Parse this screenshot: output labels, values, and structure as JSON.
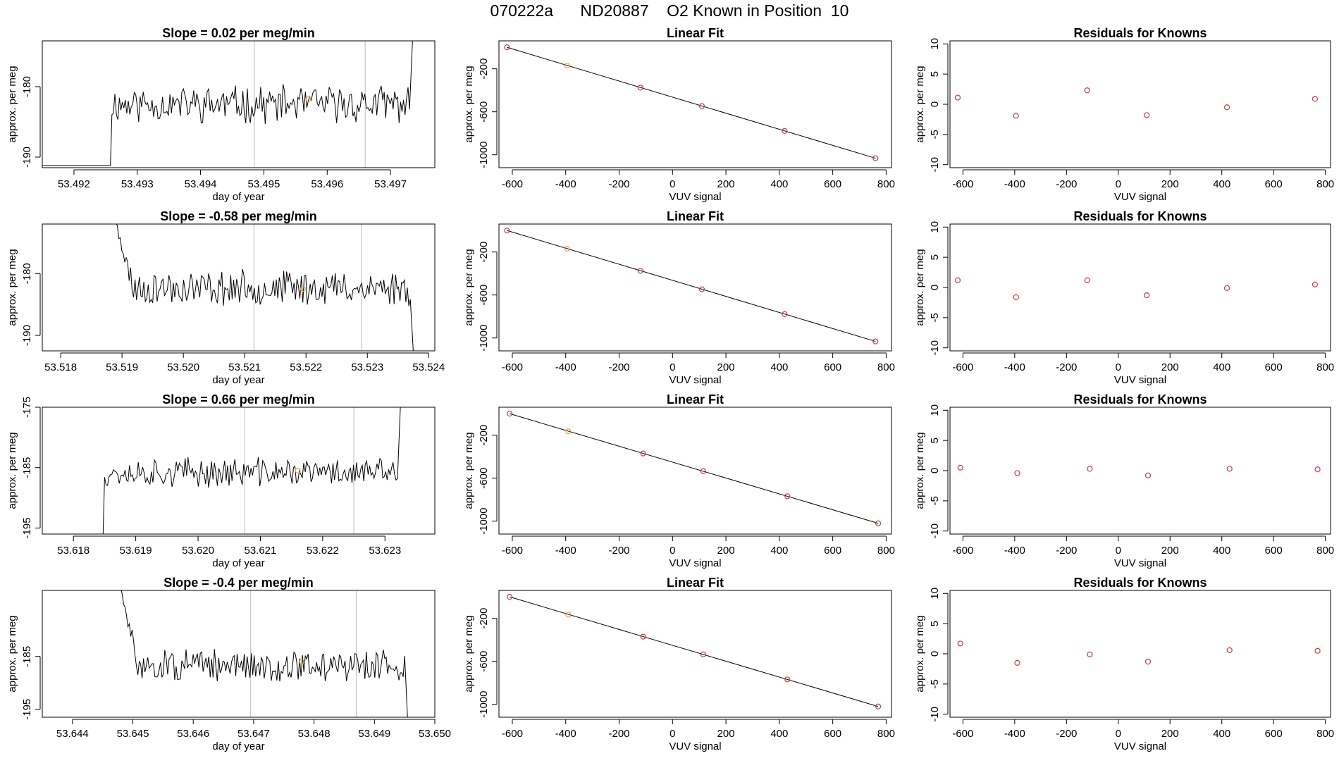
{
  "page": {
    "title": "070222a      ND20887    O2 Known in Position  10"
  },
  "colors": {
    "line": "#000000",
    "box": "#000000",
    "vline": "#bebebe",
    "point": "#cd3b3b",
    "highlight": "#e8a33c"
  },
  "chart_data": [
    {
      "type": "line",
      "row": 0,
      "col": 0,
      "title": "Slope =  0.02  per meg/min",
      "xlabel": "day of year",
      "ylabel": "approx. per meg",
      "xlim": [
        53.4915,
        53.4977
      ],
      "ylim": [
        -191.5,
        -173.5
      ],
      "xticks": [
        53.492,
        53.493,
        53.494,
        53.495,
        53.496,
        53.497
      ],
      "xtick_labels": [
        "53.492",
        "53.493",
        "53.494",
        "53.495",
        "53.496",
        "53.497"
      ],
      "yticks": [
        -180,
        -190
      ],
      "ytick_labels": [
        "-180",
        "-190"
      ],
      "vlines": [
        53.49485,
        53.4966
      ],
      "highlight": {
        "x": 53.4957,
        "y": -181.8
      },
      "trace": {
        "x_start": 53.4926,
        "x_end": 53.4973,
        "baseline": -182.5,
        "pre_value": -191.2,
        "end_value": -173.5,
        "amplitude": 2.2,
        "seed": 11,
        "n": 200
      }
    },
    {
      "type": "scatter",
      "row": 0,
      "col": 1,
      "title": "Linear Fit",
      "xlabel": "VUV signal",
      "ylabel": "approx. per meg",
      "xlim": [
        -650,
        820
      ],
      "ylim": [
        -1120,
        60
      ],
      "xticks": [
        -600,
        -400,
        -200,
        0,
        200,
        400,
        600,
        800
      ],
      "xtick_labels": [
        "-600",
        "-400",
        "-200",
        "0",
        "200",
        "400",
        "600",
        "800"
      ],
      "yticks": [
        -200,
        -600,
        -1000
      ],
      "ytick_labels": [
        "-200",
        "-600",
        "-1000"
      ],
      "points": [
        [
          -620,
          0
        ],
        [
          -395,
          -170
        ],
        [
          -120,
          -375
        ],
        [
          110,
          -547
        ],
        [
          420,
          -778
        ],
        [
          760,
          -1032
        ]
      ],
      "highlight_index": 1,
      "fit_line": [
        [
          -620,
          0
        ],
        [
          760,
          -1032
        ]
      ]
    },
    {
      "type": "scatter",
      "row": 0,
      "col": 2,
      "title": "Residuals for Knowns",
      "xlabel": "VUV signal",
      "ylabel": "approx. per meg",
      "xlim": [
        -650,
        820
      ],
      "ylim": [
        -10.5,
        10.5
      ],
      "xticks": [
        -600,
        -400,
        -200,
        0,
        200,
        400,
        600,
        800
      ],
      "xtick_labels": [
        "-600",
        "-400",
        "-200",
        "0",
        "200",
        "400",
        "600",
        "800"
      ],
      "yticks": [
        10,
        5,
        0,
        -5,
        -10
      ],
      "ytick_labels": [
        "10",
        "5",
        "0",
        "-5",
        "-10"
      ],
      "points": [
        [
          -620,
          1.1
        ],
        [
          -395,
          -1.9
        ],
        [
          -120,
          2.3
        ],
        [
          110,
          -1.8
        ],
        [
          420,
          -0.5
        ],
        [
          760,
          0.9
        ]
      ]
    },
    {
      "type": "line",
      "row": 1,
      "col": 0,
      "title": "Slope =  -0.58  per meg/min",
      "xlabel": "day of year",
      "ylabel": "approx. per meg",
      "xlim": [
        53.5177,
        53.5241
      ],
      "ylim": [
        -192.5,
        -172.0
      ],
      "xticks": [
        53.518,
        53.519,
        53.52,
        53.521,
        53.522,
        53.523,
        53.524
      ],
      "xtick_labels": [
        "53.518",
        "53.519",
        "53.520",
        "53.521",
        "53.522",
        "53.523",
        "53.524"
      ],
      "yticks": [
        -180,
        -190
      ],
      "ytick_labels": [
        "-180",
        "-190"
      ],
      "vlines": [
        53.52115,
        53.5229
      ],
      "highlight": {
        "x": 53.52195,
        "y": -182.5
      },
      "trace": {
        "x_start": 53.5189,
        "x_end": 53.5237,
        "baseline": -182.3,
        "start_value": -172.0,
        "end_value": -192.5,
        "amplitude": 2.4,
        "seed": 23,
        "n": 200
      }
    },
    {
      "type": "scatter",
      "row": 1,
      "col": 1,
      "title": "Linear Fit",
      "xlabel": "VUV signal",
      "ylabel": "approx. per meg",
      "xlim": [
        -650,
        820
      ],
      "ylim": [
        -1120,
        60
      ],
      "xticks": [
        -600,
        -400,
        -200,
        0,
        200,
        400,
        600,
        800
      ],
      "xtick_labels": [
        "-600",
        "-400",
        "-200",
        "0",
        "200",
        "400",
        "600",
        "800"
      ],
      "yticks": [
        -200,
        -600,
        -1000
      ],
      "ytick_labels": [
        "-200",
        "-600",
        "-1000"
      ],
      "points": [
        [
          -620,
          0
        ],
        [
          -395,
          -170
        ],
        [
          -120,
          -375
        ],
        [
          110,
          -547
        ],
        [
          420,
          -778
        ],
        [
          760,
          -1032
        ]
      ],
      "highlight_index": 1,
      "fit_line": [
        [
          -620,
          0
        ],
        [
          760,
          -1032
        ]
      ]
    },
    {
      "type": "scatter",
      "row": 1,
      "col": 2,
      "title": "Residuals for Knowns",
      "xlabel": "VUV signal",
      "ylabel": "approx. per meg",
      "xlim": [
        -650,
        820
      ],
      "ylim": [
        -10.5,
        10.5
      ],
      "xticks": [
        -600,
        -400,
        -200,
        0,
        200,
        400,
        600,
        800
      ],
      "xtick_labels": [
        "-600",
        "-400",
        "-200",
        "0",
        "200",
        "400",
        "600",
        "800"
      ],
      "yticks": [
        10,
        5,
        0,
        -5,
        -10
      ],
      "ytick_labels": [
        "10",
        "5",
        "0",
        "-5",
        "-10"
      ],
      "points": [
        [
          -620,
          1.2
        ],
        [
          -395,
          -1.6
        ],
        [
          -120,
          1.2
        ],
        [
          110,
          -1.3
        ],
        [
          420,
          -0.1
        ],
        [
          760,
          0.5
        ]
      ]
    },
    {
      "type": "line",
      "row": 2,
      "col": 0,
      "title": "Slope =  0.66  per meg/min",
      "xlabel": "day of year",
      "ylabel": "approx. per meg",
      "xlim": [
        53.6175,
        53.6238
      ],
      "ylim": [
        -196.0,
        -175.0
      ],
      "xticks": [
        53.618,
        53.619,
        53.62,
        53.621,
        53.622,
        53.623
      ],
      "xtick_labels": [
        "53.618",
        "53.619",
        "53.620",
        "53.621",
        "53.622",
        "53.623"
      ],
      "yticks": [
        -175,
        -185,
        -195
      ],
      "ytick_labels": [
        "-175",
        "-185",
        "-195"
      ],
      "vlines": [
        53.62075,
        53.6225
      ],
      "highlight": {
        "x": 53.6216,
        "y": -185.5
      },
      "trace": {
        "x_start": 53.6185,
        "x_end": 53.6232,
        "baseline": -185.8,
        "pre_value": -196.0,
        "end_value": -175.0,
        "amplitude": 2.0,
        "seed": 37,
        "n": 200
      }
    },
    {
      "type": "scatter",
      "row": 2,
      "col": 1,
      "title": "Linear Fit",
      "xlabel": "VUV signal",
      "ylabel": "approx. per meg",
      "xlim": [
        -650,
        820
      ],
      "ylim": [
        -1120,
        60
      ],
      "xticks": [
        -600,
        -400,
        -200,
        0,
        200,
        400,
        600,
        800
      ],
      "xtick_labels": [
        "-600",
        "-400",
        "-200",
        "0",
        "200",
        "400",
        "600",
        "800"
      ],
      "yticks": [
        -200,
        -600,
        -1000
      ],
      "ytick_labels": [
        "-200",
        "-600",
        "-1000"
      ],
      "points": [
        [
          -610,
          0
        ],
        [
          -390,
          -165
        ],
        [
          -110,
          -370
        ],
        [
          115,
          -535
        ],
        [
          430,
          -768
        ],
        [
          770,
          -1020
        ]
      ],
      "highlight_index": 1,
      "fit_line": [
        [
          -610,
          0
        ],
        [
          770,
          -1020
        ]
      ]
    },
    {
      "type": "scatter",
      "row": 2,
      "col": 2,
      "title": "Residuals for Knowns",
      "xlabel": "VUV signal",
      "ylabel": "approx. per meg",
      "xlim": [
        -650,
        820
      ],
      "ylim": [
        -10.5,
        10.5
      ],
      "xticks": [
        -600,
        -400,
        -200,
        0,
        200,
        400,
        600,
        800
      ],
      "xtick_labels": [
        "-600",
        "-400",
        "-200",
        "0",
        "200",
        "400",
        "600",
        "800"
      ],
      "yticks": [
        10,
        5,
        0,
        -5,
        -10
      ],
      "ytick_labels": [
        "10",
        "5",
        "0",
        "-5",
        "-10"
      ],
      "points": [
        [
          -610,
          0.5
        ],
        [
          -390,
          -0.4
        ],
        [
          -110,
          0.3
        ],
        [
          115,
          -0.8
        ],
        [
          430,
          0.3
        ],
        [
          770,
          0.2
        ]
      ]
    },
    {
      "type": "line",
      "row": 3,
      "col": 0,
      "title": "Slope =  -0.4  per meg/min",
      "xlabel": "day of year",
      "ylabel": "approx. per meg",
      "xlim": [
        53.6435,
        53.65
      ],
      "ylim": [
        -196.5,
        -172.5
      ],
      "xticks": [
        53.644,
        53.645,
        53.646,
        53.647,
        53.648,
        53.649,
        53.65
      ],
      "xtick_labels": [
        "53.644",
        "53.645",
        "53.646",
        "53.647",
        "53.648",
        "53.649",
        "53.650"
      ],
      "yticks": [
        -185,
        -195
      ],
      "ytick_labels": [
        "-185",
        "-195"
      ],
      "vlines": [
        53.64695,
        53.6487
      ],
      "highlight": {
        "x": 53.6478,
        "y": -186.0
      },
      "trace": {
        "x_start": 53.6448,
        "x_end": 53.6495,
        "baseline": -186.8,
        "start_value": -172.5,
        "end_value": -196.5,
        "amplitude": 2.6,
        "seed": 51,
        "n": 200
      }
    },
    {
      "type": "scatter",
      "row": 3,
      "col": 1,
      "title": "Linear Fit",
      "xlabel": "VUV signal",
      "ylabel": "approx. per meg",
      "xlim": [
        -650,
        820
      ],
      "ylim": [
        -1120,
        60
      ],
      "xticks": [
        -600,
        -400,
        -200,
        0,
        200,
        400,
        600,
        800
      ],
      "xtick_labels": [
        "-600",
        "-400",
        "-200",
        "0",
        "200",
        "400",
        "600",
        "800"
      ],
      "yticks": [
        -200,
        -600,
        -1000
      ],
      "ytick_labels": [
        "-200",
        "-600",
        "-1000"
      ],
      "points": [
        [
          -610,
          0
        ],
        [
          -390,
          -165
        ],
        [
          -110,
          -370
        ],
        [
          115,
          -535
        ],
        [
          430,
          -768
        ],
        [
          770,
          -1020
        ]
      ],
      "highlight_index": 1,
      "fit_line": [
        [
          -610,
          0
        ],
        [
          770,
          -1020
        ]
      ]
    },
    {
      "type": "scatter",
      "row": 3,
      "col": 2,
      "title": "Residuals for Knowns",
      "xlabel": "VUV signal",
      "ylabel": "approx. per meg",
      "xlim": [
        -650,
        820
      ],
      "ylim": [
        -10.5,
        10.5
      ],
      "xticks": [
        -600,
        -400,
        -200,
        0,
        200,
        400,
        600,
        800
      ],
      "xtick_labels": [
        "-600",
        "-400",
        "-200",
        "0",
        "200",
        "400",
        "600",
        "800"
      ],
      "yticks": [
        10,
        5,
        0,
        -5,
        -10
      ],
      "ytick_labels": [
        "10",
        "5",
        "0",
        "-5",
        "-10"
      ],
      "points": [
        [
          -610,
          1.7
        ],
        [
          -390,
          -1.5
        ],
        [
          -110,
          -0.1
        ],
        [
          115,
          -1.3
        ],
        [
          430,
          0.6
        ],
        [
          770,
          0.5
        ]
      ]
    }
  ]
}
